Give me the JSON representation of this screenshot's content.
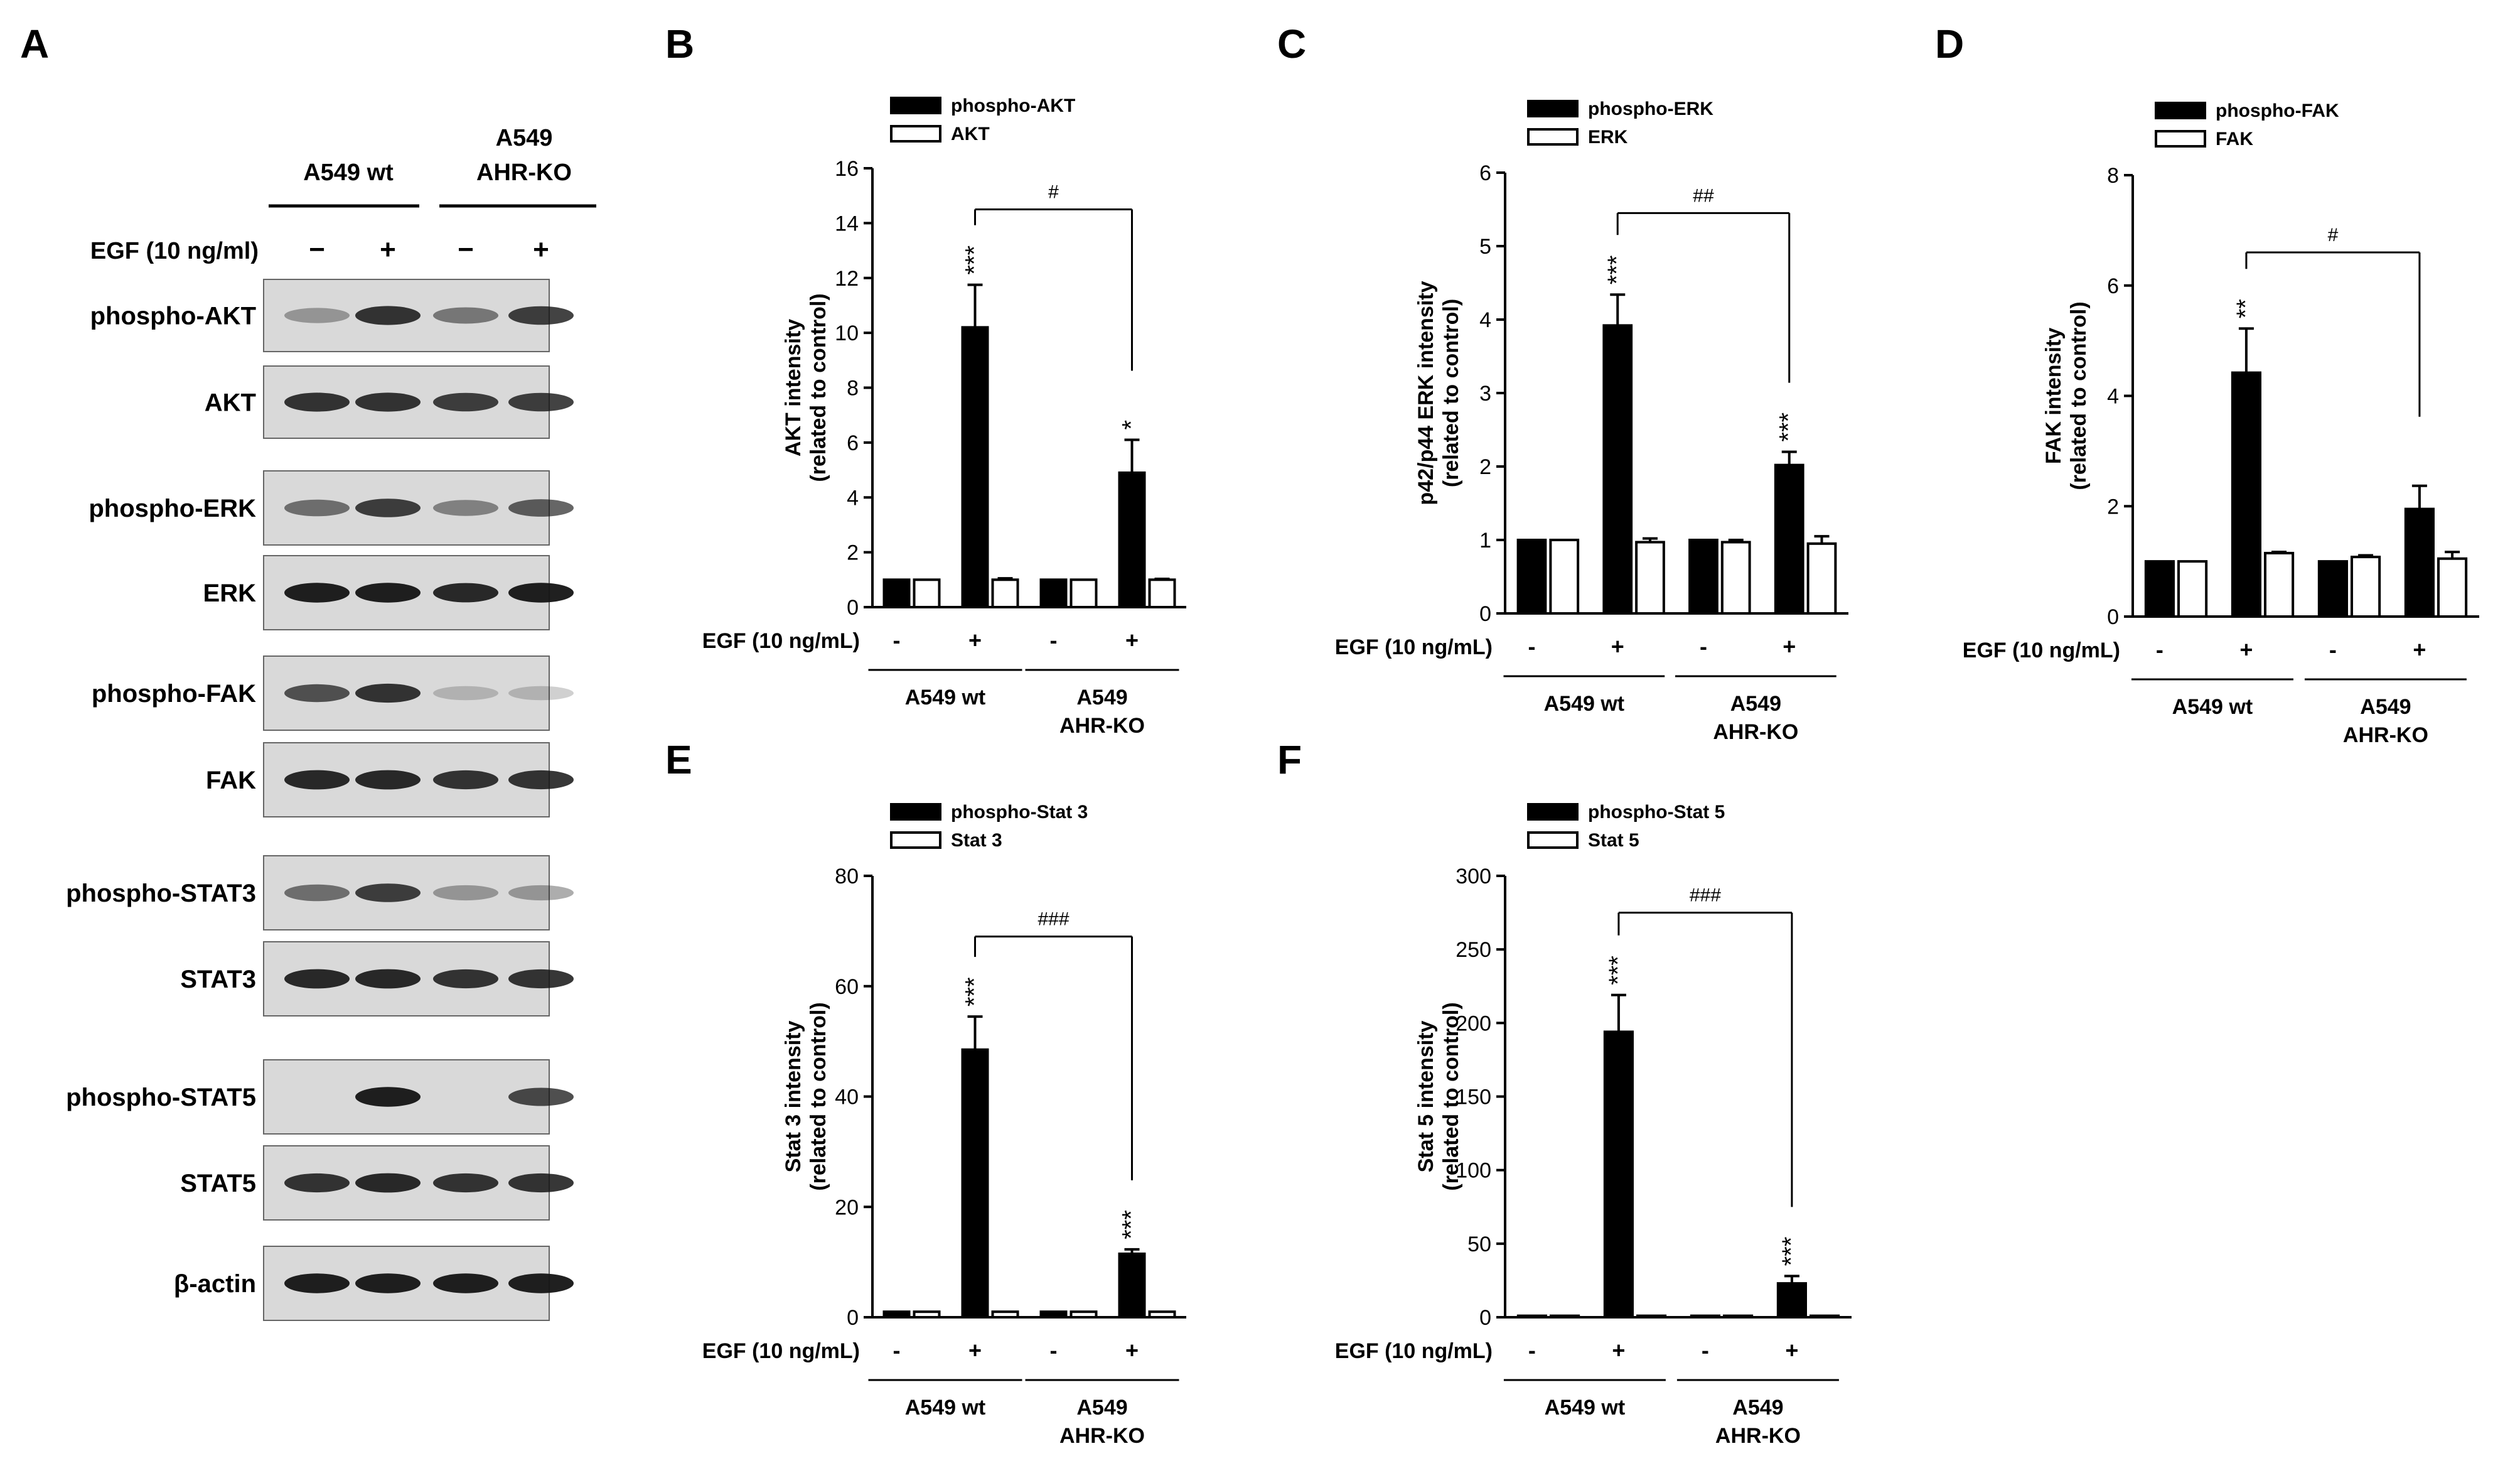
{
  "colors": {
    "bar_phospho": "#000000",
    "bar_total": "#ffffff",
    "blot_bg": "#d9d9d9",
    "band": "#1a1a1a"
  },
  "western_blot": {
    "panel_label": "A",
    "group_wt": "A549 wt",
    "group_ko_line1": "A549",
    "group_ko_line2": "AHR-KO",
    "egf_label": "EGF (10 ng/ml)",
    "egf_signs": [
      "−",
      "+",
      "−",
      "+"
    ],
    "rows": [
      {
        "label": "phospho-AKT",
        "bands": [
          0.35,
          0.85,
          0.5,
          0.8
        ]
      },
      {
        "label": "AKT",
        "bands": [
          0.85,
          0.85,
          0.8,
          0.8
        ]
      },
      {
        "label": "phospho-ERK",
        "bands": [
          0.55,
          0.8,
          0.45,
          0.65
        ]
      },
      {
        "label": "ERK",
        "bands": [
          0.95,
          0.95,
          0.9,
          0.95
        ]
      },
      {
        "label": "phospho-FAK",
        "bands": [
          0.7,
          0.85,
          0.2,
          0.2
        ]
      },
      {
        "label": "FAK",
        "bands": [
          0.9,
          0.9,
          0.85,
          0.85
        ]
      },
      {
        "label": "phospho-STAT3",
        "bands": [
          0.55,
          0.8,
          0.35,
          0.35
        ]
      },
      {
        "label": "STAT3",
        "bands": [
          0.9,
          0.9,
          0.85,
          0.85
        ]
      },
      {
        "label": "phospho-STAT5",
        "bands": [
          0.0,
          0.95,
          0.0,
          0.75
        ]
      },
      {
        "label": "STAT5",
        "bands": [
          0.85,
          0.9,
          0.85,
          0.85
        ]
      },
      {
        "label": "β-actin",
        "bands": [
          0.95,
          0.95,
          0.95,
          0.95
        ]
      }
    ]
  },
  "chart_data": [
    {
      "panel": "B",
      "type": "bar",
      "ylabel_line1": "AKT intensity",
      "ylabel_line2": "(related to control)",
      "ylim": [
        0,
        16
      ],
      "yticks": [
        0,
        2,
        4,
        6,
        8,
        10,
        12,
        14,
        16
      ],
      "legend": [
        "phospho-AKT",
        "AKT"
      ],
      "egf_label": "EGF (10 ng/mL)",
      "egf_signs": [
        "-",
        "+",
        "-",
        "+"
      ],
      "groups": [
        "A549 wt",
        "A549|AHR-KO"
      ],
      "series": [
        {
          "name": "phospho-AKT",
          "values": [
            1.0,
            10.2,
            1.0,
            4.9
          ],
          "errors": [
            0,
            1.55,
            0,
            1.2
          ],
          "marks": [
            "",
            "***",
            "",
            "*"
          ]
        },
        {
          "name": "AKT",
          "values": [
            1.0,
            1.0,
            1.0,
            1.0
          ],
          "errors": [
            0,
            0.05,
            0,
            0.03
          ],
          "marks": [
            "",
            "",
            "",
            ""
          ]
        }
      ],
      "bracket": {
        "label": "#",
        "from": 1,
        "to": 3,
        "y": 14.5
      }
    },
    {
      "panel": "C",
      "type": "bar",
      "ylabel_line1": "p42/p44 ERK intensity",
      "ylabel_line2": "(related to control)",
      "ylim": [
        0,
        6
      ],
      "yticks": [
        0,
        1,
        2,
        3,
        4,
        5,
        6
      ],
      "legend": [
        "phospho-ERK",
        "ERK"
      ],
      "egf_label": "EGF (10 ng/mL)",
      "egf_signs": [
        "-",
        "+",
        "-",
        "+"
      ],
      "groups": [
        "A549 wt",
        "A549|AHR-KO"
      ],
      "series": [
        {
          "name": "phospho-ERK",
          "values": [
            1.0,
            3.92,
            1.0,
            2.02
          ],
          "errors": [
            0,
            0.42,
            0,
            0.18
          ],
          "marks": [
            "",
            "***",
            "",
            "***"
          ]
        },
        {
          "name": "ERK",
          "values": [
            1.0,
            0.97,
            0.97,
            0.95
          ],
          "errors": [
            0,
            0.05,
            0.03,
            0.1
          ],
          "marks": [
            "",
            "",
            "",
            ""
          ]
        }
      ],
      "bracket": {
        "label": "##",
        "from": 1,
        "to": 3,
        "y": 5.45
      }
    },
    {
      "panel": "D",
      "type": "bar",
      "ylabel_line1": "FAK intensity",
      "ylabel_line2": "(related to control)",
      "ylim": [
        0,
        8
      ],
      "yticks": [
        0,
        2,
        4,
        6,
        8
      ],
      "legend": [
        "phospho-FAK",
        "FAK"
      ],
      "egf_label": "EGF (10 ng/mL)",
      "egf_signs": [
        "-",
        "+",
        "-",
        "+"
      ],
      "groups": [
        "A549 wt",
        "A549|AHR-KO"
      ],
      "series": [
        {
          "name": "phospho-FAK",
          "values": [
            1.0,
            4.42,
            1.0,
            1.95
          ],
          "errors": [
            0,
            0.8,
            0,
            0.42
          ],
          "marks": [
            "",
            "**",
            "",
            ""
          ]
        },
        {
          "name": "FAK",
          "values": [
            1.0,
            1.15,
            1.08,
            1.05
          ],
          "errors": [
            0,
            0.02,
            0.03,
            0.12
          ],
          "marks": [
            "",
            "",
            "",
            ""
          ]
        }
      ],
      "bracket": {
        "label": "#",
        "from": 1,
        "to": 3,
        "y": 6.6
      }
    },
    {
      "panel": "E",
      "type": "bar",
      "ylabel_line1": "Stat 3 intensity",
      "ylabel_line2": "(related to control)",
      "ylim": [
        0,
        80
      ],
      "yticks": [
        0,
        20,
        40,
        60,
        80
      ],
      "legend": [
        "phospho-Stat 3",
        "Stat 3"
      ],
      "egf_label": "EGF (10 ng/mL)",
      "egf_signs": [
        "-",
        "+",
        "-",
        "+"
      ],
      "groups": [
        "A549 wt",
        "A549|AHR-KO"
      ],
      "series": [
        {
          "name": "phospho-Stat 3",
          "values": [
            1.0,
            48.5,
            1.0,
            11.5
          ],
          "errors": [
            0,
            6.0,
            0,
            0.8
          ],
          "marks": [
            "",
            "***",
            "",
            "***"
          ]
        },
        {
          "name": "Stat 3",
          "values": [
            1.0,
            1.0,
            1.0,
            1.0
          ],
          "errors": [
            0,
            0,
            0,
            0
          ],
          "marks": [
            "",
            "",
            "",
            ""
          ]
        }
      ],
      "bracket": {
        "label": "###",
        "from": 1,
        "to": 3,
        "y": 69
      }
    },
    {
      "panel": "F",
      "type": "bar",
      "ylabel_line1": "Stat 5 intensity",
      "ylabel_line2": "(related to control)",
      "ylim": [
        0,
        300
      ],
      "yticks": [
        0,
        50,
        100,
        150,
        200,
        250,
        300
      ],
      "legend": [
        "phospho-Stat 5",
        "Stat 5"
      ],
      "egf_label": "EGF (10 ng/mL)",
      "egf_signs": [
        "-",
        "+",
        "-",
        "+"
      ],
      "groups": [
        "A549 wt",
        "A549|AHR-KO"
      ],
      "series": [
        {
          "name": "phospho-Stat 5",
          "values": [
            1.0,
            194,
            1.0,
            23
          ],
          "errors": [
            0,
            25,
            0,
            5
          ],
          "marks": [
            "",
            "***",
            "",
            "***"
          ]
        },
        {
          "name": "Stat 5",
          "values": [
            1.0,
            1.0,
            1.0,
            1.0
          ],
          "errors": [
            0,
            0,
            0,
            0
          ],
          "marks": [
            "",
            "",
            "",
            ""
          ]
        }
      ],
      "bracket": {
        "label": "###",
        "from": 1,
        "to": 3,
        "y": 275
      }
    }
  ]
}
